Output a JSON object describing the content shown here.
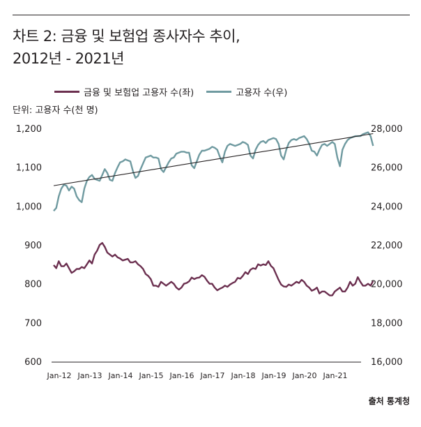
{
  "title": {
    "line1": "차트 2: 금융 및 보험업 종사자수 추이,",
    "line2": "2012년 - 2021년"
  },
  "unit_label": "단위: 고용자 수(천 명)",
  "source": "출처 통계청",
  "colors": {
    "finance": "#6b2f4f",
    "employment": "#6f9aa0",
    "trend": "#231f20"
  },
  "chart_data": {
    "type": "line",
    "legend": [
      "금융 및 보험업 고용자 수(좌)",
      "고용자 수(우)"
    ],
    "x_ticks": [
      "Jan-12",
      "Jan-13",
      "Jan-14",
      "Jan-15",
      "Jan-16",
      "Jan-17",
      "Jan-18",
      "Jan-19",
      "Jan-20",
      "Jan-21"
    ],
    "y_left": {
      "ticks": [
        "1,200",
        "1,100",
        "1,000",
        "900",
        "800",
        "700",
        "600"
      ],
      "range": [
        600,
        1200
      ]
    },
    "y_right": {
      "ticks": [
        "28,000",
        "26,000",
        "24,000",
        "22,000",
        "20,000",
        "18,000",
        "16,000"
      ],
      "range": [
        16000,
        28000
      ]
    },
    "series": [
      {
        "name": "금융 및 보험업 고용자 수(좌)",
        "axis": "left",
        "values": [
          848,
          840,
          858,
          845,
          845,
          852,
          840,
          828,
          832,
          838,
          838,
          843,
          840,
          850,
          860,
          852,
          875,
          885,
          900,
          905,
          895,
          880,
          875,
          870,
          875,
          868,
          865,
          860,
          862,
          864,
          855,
          855,
          858,
          850,
          845,
          838,
          825,
          820,
          812,
          795,
          795,
          792,
          805,
          800,
          795,
          800,
          805,
          800,
          790,
          785,
          790,
          800,
          802,
          806,
          816,
          812,
          815,
          816,
          822,
          818,
          808,
          800,
          800,
          790,
          783,
          787,
          790,
          795,
          792,
          798,
          802,
          805,
          815,
          813,
          820,
          830,
          825,
          836,
          840,
          838,
          850,
          847,
          850,
          848,
          858,
          846,
          840,
          825,
          810,
          798,
          793,
          792,
          798,
          795,
          800,
          805,
          802,
          810,
          805,
          795,
          790,
          782,
          785,
          790,
          775,
          780,
          780,
          775,
          770,
          770,
          780,
          785,
          790,
          780,
          780,
          790,
          805,
          795,
          800,
          817,
          805,
          795,
          795,
          800,
          795,
          807
        ]
      },
      {
        "name": "고용자 수(우)",
        "axis": "right",
        "values": [
          23750,
          23900,
          24500,
          24900,
          25100,
          25050,
          24800,
          25000,
          24900,
          24500,
          24300,
          24200,
          24900,
          25300,
          25500,
          25600,
          25400,
          25350,
          25300,
          25600,
          25900,
          25700,
          25350,
          25300,
          25700,
          26000,
          26250,
          26300,
          26400,
          26350,
          26300,
          25800,
          25450,
          25550,
          25900,
          26200,
          26500,
          26550,
          26600,
          26500,
          26500,
          26450,
          25900,
          25750,
          26000,
          26250,
          26450,
          26500,
          26700,
          26750,
          26800,
          26800,
          26750,
          26750,
          26100,
          25950,
          26300,
          26650,
          26850,
          26850,
          26900,
          26950,
          27050,
          27000,
          26900,
          26550,
          26250,
          26800,
          27100,
          27200,
          27150,
          27100,
          27150,
          27200,
          27300,
          27250,
          27150,
          26600,
          26450,
          26900,
          27150,
          27300,
          27350,
          27250,
          27400,
          27450,
          27500,
          27450,
          27200,
          26600,
          26400,
          26900,
          27250,
          27400,
          27450,
          27400,
          27500,
          27550,
          27600,
          27450,
          27200,
          26850,
          26800,
          26600,
          26900,
          27150,
          27200,
          27100,
          27200,
          27300,
          27200,
          26500,
          26050,
          26900,
          27200,
          27400,
          27500,
          27550,
          27600,
          27600,
          27600,
          27700,
          27750,
          27800,
          27600,
          27100
        ]
      }
    ],
    "trendline": {
      "series": "고용자 수(우)",
      "start": 25050,
      "end": 27730
    }
  }
}
